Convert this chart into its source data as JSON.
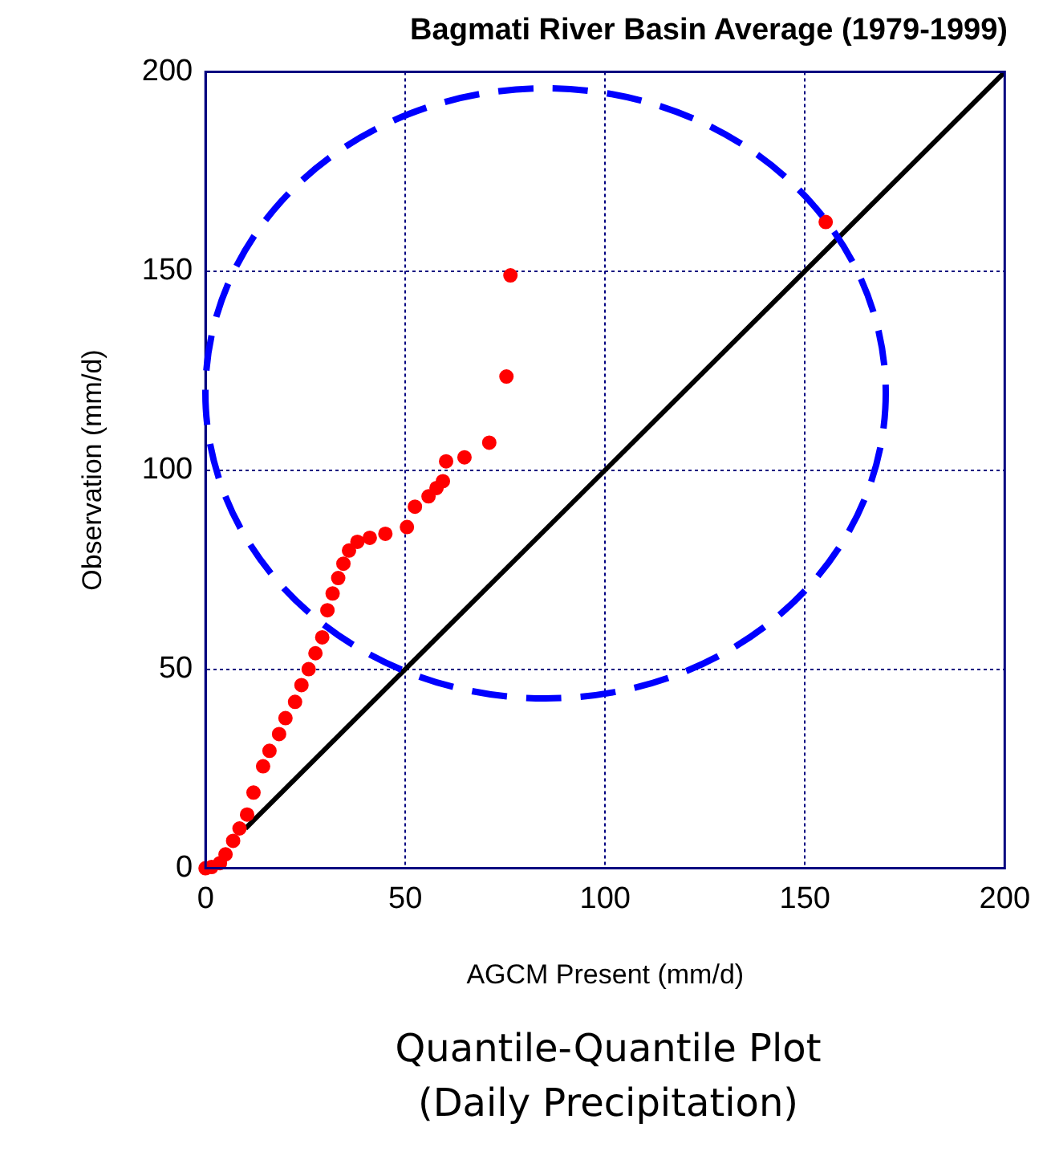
{
  "chart_data": {
    "type": "scatter",
    "title": "Bagmati River Basin Average (1979-1999)",
    "xlabel": "AGCM Present (mm/d)",
    "ylabel": "Observation (mm/d)",
    "annotations": [
      "Quantile-Quantile Plot",
      "(Daily Precipitation)"
    ],
    "xlim": [
      0,
      200
    ],
    "ylim": [
      0,
      200
    ],
    "xticks": [
      0,
      50,
      100,
      150,
      200
    ],
    "yticks": [
      0,
      50,
      100,
      150,
      200
    ],
    "grid": true,
    "legend": false,
    "series": [
      {
        "type": "scatter",
        "color": "#ff0000",
        "marker": "circle",
        "x": [
          0,
          1.5,
          3.6,
          5,
          6.9,
          8.5,
          10.4,
          12,
          14.4,
          16,
          18.4,
          20,
          22.4,
          24,
          25.8,
          27.5,
          29.2,
          30.5,
          31.8,
          33.2,
          34.5,
          35.9,
          38,
          41.1,
          45,
          50.4,
          52.4,
          55.8,
          57.8,
          59.4,
          60.2,
          64.8,
          71,
          75.3,
          76.3,
          155.2
        ],
        "values": [
          0,
          0.3,
          1.3,
          3.5,
          6.9,
          10,
          13.5,
          19,
          25.6,
          29.5,
          33.7,
          37.7,
          41.8,
          46,
          50,
          54,
          58,
          64.8,
          69,
          72.9,
          76.5,
          79.8,
          82,
          83,
          84,
          85.7,
          90.8,
          93.4,
          95.5,
          97.2,
          102.2,
          103.2,
          106.9,
          123.5,
          148.9,
          162.3
        ]
      },
      {
        "type": "line",
        "color": "#000000",
        "marker": "none",
        "line_style": "solid",
        "x": [
          10,
          200
        ],
        "values": [
          10,
          200
        ]
      }
    ]
  }
}
